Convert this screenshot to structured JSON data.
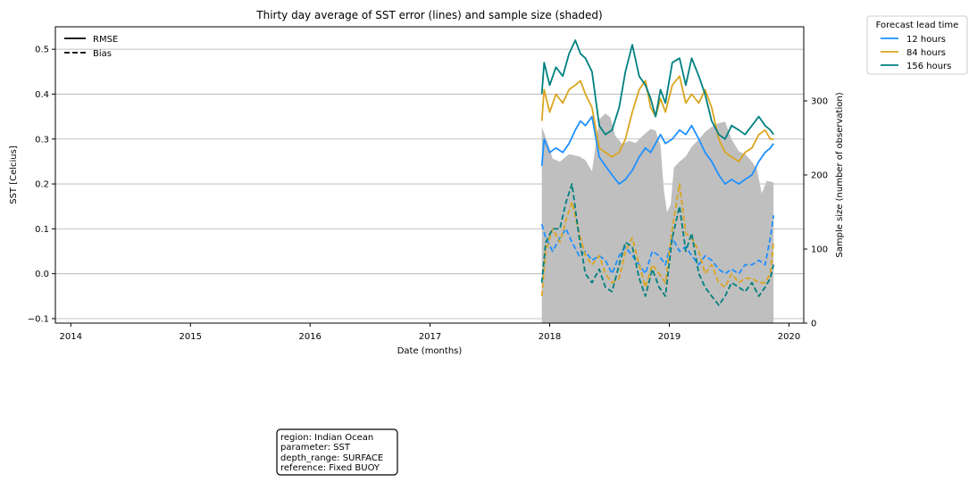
{
  "chart_data": {
    "type": "line",
    "title": "Thirty day average of SST error (lines) and sample size (shaded)",
    "xlabel": "Date (months)",
    "ylabel": "SST [Celcius]",
    "y2label": "Sample size (number of observation)",
    "xlim": [
      "2013-11-15",
      "2020-02-15"
    ],
    "ylim": [
      -0.11,
      0.55
    ],
    "y2lim": [
      0,
      400
    ],
    "x_ticks": [
      "2014",
      "2015",
      "2016",
      "2017",
      "2018",
      "2019",
      "2020"
    ],
    "y_ticks": [
      "−0.1",
      "0.0",
      "0.1",
      "0.2",
      "0.3",
      "0.4",
      "0.5"
    ],
    "y2_ticks": [
      "0",
      "100",
      "200",
      "300"
    ],
    "grid": "horizontal",
    "style_legend": {
      "position": "top-left",
      "entries": [
        {
          "label": "RMSE",
          "dash": "solid"
        },
        {
          "label": "Bias",
          "dash": "dashed"
        }
      ]
    },
    "legend": {
      "title": "Forecast lead time",
      "position": "outside-right",
      "entries": [
        "12 hours",
        "84 hours",
        "156 hours"
      ]
    },
    "colors": {
      "12 hours": "#1e90ff",
      "84 hours": "#daa520",
      "156 hours": "#008080",
      "shade": "#bfbfbf"
    },
    "sample_size": {
      "x": [
        "2017-12-08",
        "2017-12-25",
        "2018-01-10",
        "2018-02-01",
        "2018-03-01",
        "2018-04-01",
        "2018-04-20",
        "2018-05-10",
        "2018-06-01",
        "2018-06-20",
        "2018-07-05",
        "2018-07-20",
        "2018-08-10",
        "2018-09-01",
        "2018-09-20",
        "2018-10-05",
        "2018-10-20",
        "2018-11-05",
        "2018-11-20",
        "2018-12-05",
        "2018-12-15",
        "2018-12-25",
        "2019-01-05",
        "2019-01-15",
        "2019-02-01",
        "2019-02-20",
        "2019-03-10",
        "2019-04-01",
        "2019-04-20",
        "2019-05-10",
        "2019-06-01",
        "2019-06-20",
        "2019-07-10",
        "2019-08-01",
        "2019-08-20",
        "2019-09-10",
        "2019-09-25",
        "2019-10-10",
        "2019-10-25",
        "2019-11-15"
      ],
      "values": [
        265,
        245,
        222,
        218,
        228,
        225,
        220,
        205,
        275,
        283,
        278,
        253,
        242,
        246,
        243,
        250,
        256,
        262,
        260,
        240,
        180,
        150,
        160,
        210,
        218,
        225,
        238,
        248,
        258,
        265,
        270,
        272,
        248,
        232,
        228,
        218,
        208,
        175,
        192,
        190
      ]
    },
    "series": [
      {
        "name": "12 hours",
        "metric": "RMSE",
        "x": [
          "2017-12-08",
          "2017-12-15",
          "2018-01-01",
          "2018-01-20",
          "2018-02-10",
          "2018-03-01",
          "2018-03-20",
          "2018-04-05",
          "2018-04-20",
          "2018-05-10",
          "2018-06-01",
          "2018-06-20",
          "2018-07-10",
          "2018-08-01",
          "2018-08-20",
          "2018-09-10",
          "2018-10-01",
          "2018-10-20",
          "2018-11-05",
          "2018-11-20",
          "2018-12-05",
          "2018-12-20",
          "2019-01-10",
          "2019-02-01",
          "2019-02-20",
          "2019-03-10",
          "2019-04-01",
          "2019-04-20",
          "2019-05-10",
          "2019-06-01",
          "2019-06-20",
          "2019-07-10",
          "2019-08-01",
          "2019-08-20",
          "2019-09-10",
          "2019-10-01",
          "2019-10-20",
          "2019-11-05",
          "2019-11-15"
        ],
        "values": [
          0.24,
          0.3,
          0.27,
          0.28,
          0.27,
          0.29,
          0.32,
          0.34,
          0.33,
          0.35,
          0.26,
          0.24,
          0.22,
          0.2,
          0.21,
          0.23,
          0.26,
          0.28,
          0.27,
          0.29,
          0.31,
          0.29,
          0.3,
          0.32,
          0.31,
          0.33,
          0.3,
          0.27,
          0.25,
          0.22,
          0.2,
          0.21,
          0.2,
          0.21,
          0.22,
          0.25,
          0.27,
          0.28,
          0.29
        ]
      },
      {
        "name": "84 hours",
        "metric": "RMSE",
        "x": [
          "2017-12-08",
          "2017-12-15",
          "2018-01-01",
          "2018-01-20",
          "2018-02-10",
          "2018-03-01",
          "2018-03-20",
          "2018-04-05",
          "2018-04-20",
          "2018-05-10",
          "2018-06-01",
          "2018-06-20",
          "2018-07-10",
          "2018-08-01",
          "2018-08-20",
          "2018-09-10",
          "2018-10-01",
          "2018-10-20",
          "2018-11-05",
          "2018-11-20",
          "2018-12-05",
          "2018-12-20",
          "2019-01-10",
          "2019-02-01",
          "2019-02-20",
          "2019-03-10",
          "2019-04-01",
          "2019-04-20",
          "2019-05-10",
          "2019-06-01",
          "2019-06-20",
          "2019-07-10",
          "2019-08-01",
          "2019-08-20",
          "2019-09-10",
          "2019-10-01",
          "2019-10-20",
          "2019-11-05",
          "2019-11-15"
        ],
        "values": [
          0.34,
          0.41,
          0.36,
          0.4,
          0.38,
          0.41,
          0.42,
          0.43,
          0.4,
          0.37,
          0.28,
          0.27,
          0.26,
          0.27,
          0.3,
          0.36,
          0.41,
          0.43,
          0.37,
          0.35,
          0.39,
          0.36,
          0.42,
          0.44,
          0.38,
          0.4,
          0.38,
          0.41,
          0.37,
          0.3,
          0.27,
          0.26,
          0.25,
          0.27,
          0.28,
          0.31,
          0.32,
          0.3,
          0.3
        ]
      },
      {
        "name": "156 hours",
        "metric": "RMSE",
        "x": [
          "2017-12-08",
          "2017-12-15",
          "2018-01-01",
          "2018-01-20",
          "2018-02-10",
          "2018-03-01",
          "2018-03-20",
          "2018-04-05",
          "2018-04-20",
          "2018-05-10",
          "2018-06-01",
          "2018-06-20",
          "2018-07-10",
          "2018-08-01",
          "2018-08-20",
          "2018-09-10",
          "2018-10-01",
          "2018-10-20",
          "2018-11-05",
          "2018-11-20",
          "2018-12-05",
          "2018-12-20",
          "2019-01-10",
          "2019-02-01",
          "2019-02-20",
          "2019-03-10",
          "2019-04-01",
          "2019-04-20",
          "2019-05-10",
          "2019-06-01",
          "2019-06-20",
          "2019-07-10",
          "2019-08-01",
          "2019-08-20",
          "2019-09-10",
          "2019-10-01",
          "2019-10-20",
          "2019-11-05",
          "2019-11-15"
        ],
        "values": [
          0.4,
          0.47,
          0.42,
          0.46,
          0.44,
          0.49,
          0.52,
          0.49,
          0.48,
          0.45,
          0.33,
          0.31,
          0.32,
          0.37,
          0.45,
          0.51,
          0.44,
          0.42,
          0.39,
          0.35,
          0.41,
          0.38,
          0.47,
          0.48,
          0.42,
          0.48,
          0.44,
          0.4,
          0.34,
          0.31,
          0.3,
          0.33,
          0.32,
          0.31,
          0.33,
          0.35,
          0.33,
          0.32,
          0.31
        ]
      },
      {
        "name": "12 hours",
        "metric": "Bias",
        "x": [
          "2017-12-08",
          "2017-12-20",
          "2018-01-10",
          "2018-02-01",
          "2018-02-20",
          "2018-03-10",
          "2018-04-01",
          "2018-04-20",
          "2018-05-10",
          "2018-06-01",
          "2018-06-20",
          "2018-07-10",
          "2018-08-01",
          "2018-08-20",
          "2018-09-10",
          "2018-10-01",
          "2018-10-20",
          "2018-11-10",
          "2018-12-01",
          "2018-12-20",
          "2019-01-10",
          "2019-02-01",
          "2019-02-20",
          "2019-03-10",
          "2019-04-01",
          "2019-04-20",
          "2019-05-10",
          "2019-06-01",
          "2019-06-20",
          "2019-07-10",
          "2019-08-01",
          "2019-08-20",
          "2019-09-10",
          "2019-10-01",
          "2019-10-20",
          "2019-11-05",
          "2019-11-15"
        ],
        "values": [
          0.11,
          0.08,
          0.05,
          0.08,
          0.1,
          0.07,
          0.04,
          0.05,
          0.03,
          0.04,
          0.03,
          0.0,
          0.04,
          0.06,
          0.04,
          0.02,
          0.0,
          0.05,
          0.04,
          0.02,
          0.08,
          0.05,
          0.06,
          0.04,
          0.02,
          0.04,
          0.03,
          0.01,
          0.0,
          0.01,
          0.0,
          0.02,
          0.02,
          0.03,
          0.02,
          0.08,
          0.13
        ]
      },
      {
        "name": "84 hours",
        "metric": "Bias",
        "x": [
          "2017-12-08",
          "2017-12-20",
          "2018-01-10",
          "2018-02-01",
          "2018-02-20",
          "2018-03-10",
          "2018-04-01",
          "2018-04-20",
          "2018-05-10",
          "2018-06-01",
          "2018-06-20",
          "2018-07-10",
          "2018-08-01",
          "2018-08-20",
          "2018-09-10",
          "2018-10-01",
          "2018-10-20",
          "2018-11-10",
          "2018-12-01",
          "2018-12-20",
          "2019-01-10",
          "2019-02-01",
          "2019-02-20",
          "2019-03-10",
          "2019-04-01",
          "2019-04-20",
          "2019-05-10",
          "2019-06-01",
          "2019-06-20",
          "2019-07-10",
          "2019-08-01",
          "2019-08-20",
          "2019-09-10",
          "2019-10-01",
          "2019-10-20",
          "2019-11-05",
          "2019-11-15"
        ],
        "values": [
          -0.05,
          0.05,
          0.1,
          0.07,
          0.12,
          0.16,
          0.09,
          0.04,
          0.02,
          0.04,
          0.0,
          -0.02,
          -0.01,
          0.05,
          0.08,
          0.02,
          -0.03,
          0.02,
          0.0,
          -0.02,
          0.1,
          0.2,
          0.09,
          0.08,
          0.05,
          0.0,
          0.02,
          -0.02,
          -0.03,
          0.0,
          -0.02,
          -0.01,
          -0.01,
          -0.02,
          -0.02,
          0.0,
          0.07
        ]
      },
      {
        "name": "156 hours",
        "metric": "Bias",
        "x": [
          "2017-12-08",
          "2017-12-20",
          "2018-01-10",
          "2018-02-01",
          "2018-02-20",
          "2018-03-10",
          "2018-04-01",
          "2018-04-20",
          "2018-05-10",
          "2018-06-01",
          "2018-06-20",
          "2018-07-10",
          "2018-08-01",
          "2018-08-20",
          "2018-09-10",
          "2018-10-01",
          "2018-10-20",
          "2018-11-10",
          "2018-12-01",
          "2018-12-20",
          "2019-01-10",
          "2019-02-01",
          "2019-02-20",
          "2019-03-10",
          "2019-04-01",
          "2019-04-20",
          "2019-05-10",
          "2019-06-01",
          "2019-06-20",
          "2019-07-10",
          "2019-08-01",
          "2019-08-20",
          "2019-09-10",
          "2019-10-01",
          "2019-10-20",
          "2019-11-05",
          "2019-11-15"
        ],
        "values": [
          -0.02,
          0.07,
          0.1,
          0.1,
          0.16,
          0.2,
          0.08,
          0.0,
          -0.02,
          0.01,
          -0.03,
          -0.04,
          0.02,
          0.07,
          0.06,
          -0.01,
          -0.05,
          0.01,
          -0.03,
          -0.05,
          0.08,
          0.15,
          0.05,
          0.09,
          0.0,
          -0.03,
          -0.05,
          -0.07,
          -0.05,
          -0.02,
          -0.03,
          -0.04,
          -0.02,
          -0.05,
          -0.03,
          -0.01,
          0.02
        ]
      }
    ]
  },
  "info_box": {
    "lines": [
      "region: Indian Ocean",
      "parameter: SST",
      "depth_range: SURFACE",
      "reference: Fixed BUOY"
    ]
  }
}
